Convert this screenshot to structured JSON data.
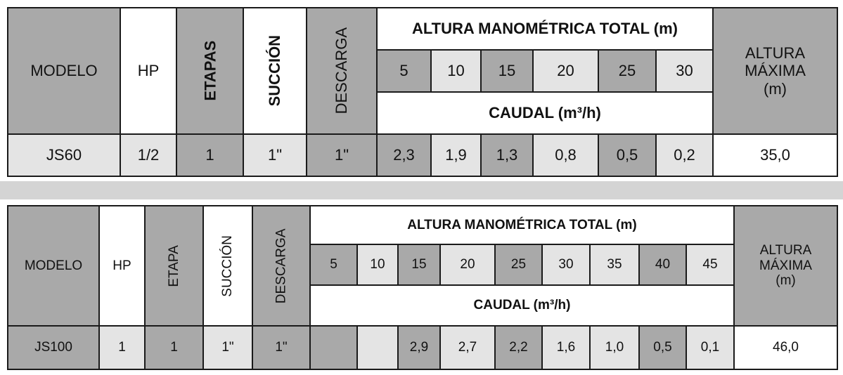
{
  "tables": [
    {
      "headers": {
        "model": "MODELO",
        "hp": "HP",
        "stages": "ETAPAS",
        "suction": "SUCCIÓN",
        "discharge": "DESCARGA",
        "total_head": "ALTURA MANOMÉTRICA TOTAL (m)",
        "flow": "CAUDAL (m³/h)",
        "max_head": "ALTURA MÁXIMA (m)"
      },
      "heights": [
        5,
        10,
        15,
        20,
        25,
        30
      ],
      "row": {
        "model": "JS60",
        "hp": "1/2",
        "stages": "1",
        "suction": "1\"",
        "discharge": "1\"",
        "flows": [
          "2,3",
          "1,9",
          "1,3",
          "0,8",
          "0,5",
          "0,2"
        ],
        "max_head": "35,0"
      }
    },
    {
      "headers": {
        "model": "MODELO",
        "hp": "HP",
        "stages": "ETAPA",
        "suction": "SUCCIÓN",
        "discharge": "DESCARGA",
        "total_head": "ALTURA MANOMÉTRICA TOTAL (m)",
        "flow": "CAUDAL (m³/h)",
        "max_head": "ALTURA MÁXIMA (m)"
      },
      "heights": [
        5,
        10,
        15,
        20,
        25,
        30,
        35,
        40,
        45
      ],
      "row": {
        "model": "JS100",
        "hp": "1",
        "stages": "1",
        "suction": "1\"",
        "discharge": "1\"",
        "flows": [
          null,
          null,
          "2,9",
          "2,7",
          "2,2",
          "1,6",
          "1,0",
          "0,5",
          "0,1"
        ],
        "max_head": "46,0"
      }
    }
  ]
}
